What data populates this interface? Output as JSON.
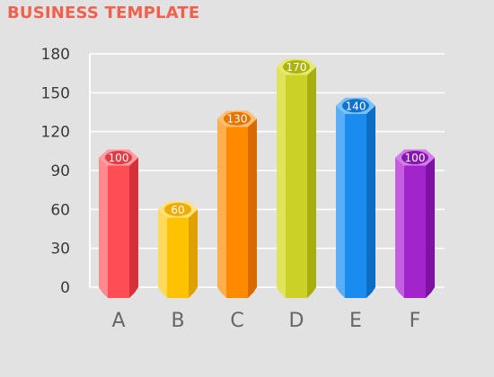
{
  "colors": {
    "title": "#f0604c",
    "background": "#e2e2e2",
    "grid": "#ffffff"
  },
  "chart_data": {
    "type": "bar",
    "title": "BUSINESS TEMPLATE",
    "xlabel": "",
    "ylabel": "",
    "categories": [
      "A",
      "B",
      "C",
      "D",
      "E",
      "F"
    ],
    "values": [
      100,
      60,
      130,
      170,
      140,
      100
    ],
    "ylim": [
      0,
      180
    ],
    "yticks": [
      0,
      30,
      60,
      90,
      120,
      150,
      180
    ],
    "grid": true,
    "legend": "none",
    "bar_style": "3d-hexagonal-prism",
    "bar_colors": [
      {
        "front": "#ff4d55",
        "light": "#ff8a8e",
        "dark": "#d8303a",
        "top": "#ff9ea2",
        "badge": "#e63a44"
      },
      {
        "front": "#ffc200",
        "light": "#ffd95a",
        "dark": "#e0a000",
        "top": "#ffe37a",
        "badge": "#f0ad00"
      },
      {
        "front": "#ff8a00",
        "light": "#ffae4d",
        "dark": "#d96a00",
        "top": "#ffbf73",
        "badge": "#e67400"
      },
      {
        "front": "#cbd126",
        "light": "#dfe45a",
        "dark": "#a9ae10",
        "top": "#e6ea70",
        "badge": "#aeb312"
      },
      {
        "front": "#1a8cf0",
        "light": "#5aaef7",
        "dark": "#0d6cc4",
        "top": "#7cc0fa",
        "badge": "#0f72cf"
      },
      {
        "front": "#a225cc",
        "light": "#c45ee0",
        "dark": "#7e12a3",
        "top": "#d07ee8",
        "badge": "#8a15b2"
      }
    ]
  }
}
